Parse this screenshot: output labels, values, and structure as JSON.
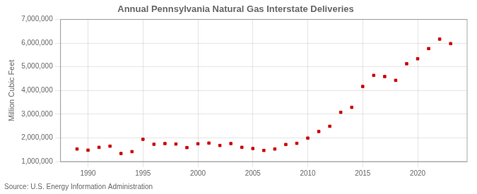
{
  "chart_data": {
    "type": "scatter",
    "title": "Annual Pennsylvania Natural Gas Interstate Deliveries",
    "y_label": "Million Cubic Feet",
    "annotations": [
      "Source: U.S. Energy Information Administration"
    ],
    "x": [
      1989,
      1990,
      1991,
      1992,
      1993,
      1994,
      1995,
      1996,
      1997,
      1998,
      1999,
      2000,
      2001,
      2002,
      2003,
      2004,
      2005,
      2006,
      2007,
      2008,
      2009,
      2010,
      2011,
      2012,
      2013,
      2014,
      2015,
      2016,
      2017,
      2018,
      2019,
      2020,
      2021,
      2022,
      2023
    ],
    "values": [
      1530000,
      1480000,
      1600000,
      1650000,
      1340000,
      1420000,
      1940000,
      1730000,
      1760000,
      1740000,
      1590000,
      1750000,
      1780000,
      1680000,
      1760000,
      1600000,
      1550000,
      1470000,
      1530000,
      1720000,
      1770000,
      1990000,
      2270000,
      2490000,
      3080000,
      3290000,
      4170000,
      4640000,
      4590000,
      4430000,
      5130000,
      5340000,
      5770000,
      6170000,
      5980000
    ],
    "color": "#cc0000",
    "marker": "square",
    "xlim": [
      1987.5,
      2024.5
    ],
    "xticks": [
      1990,
      1995,
      2000,
      2005,
      2010,
      2015,
      2020
    ],
    "ylim": [
      1000000,
      7000000
    ],
    "yticks": [
      {
        "value": 1000000,
        "label": "1,000,000"
      },
      {
        "value": 2000000,
        "label": "2,000,000"
      },
      {
        "value": 3000000,
        "label": "3,000,000"
      },
      {
        "value": 4000000,
        "label": "4,000,000"
      },
      {
        "value": 5000000,
        "label": "5,000,000"
      },
      {
        "value": 6000000,
        "label": "6,000,000"
      },
      {
        "value": 7000000,
        "label": "7,000,000"
      }
    ],
    "grid": true
  }
}
